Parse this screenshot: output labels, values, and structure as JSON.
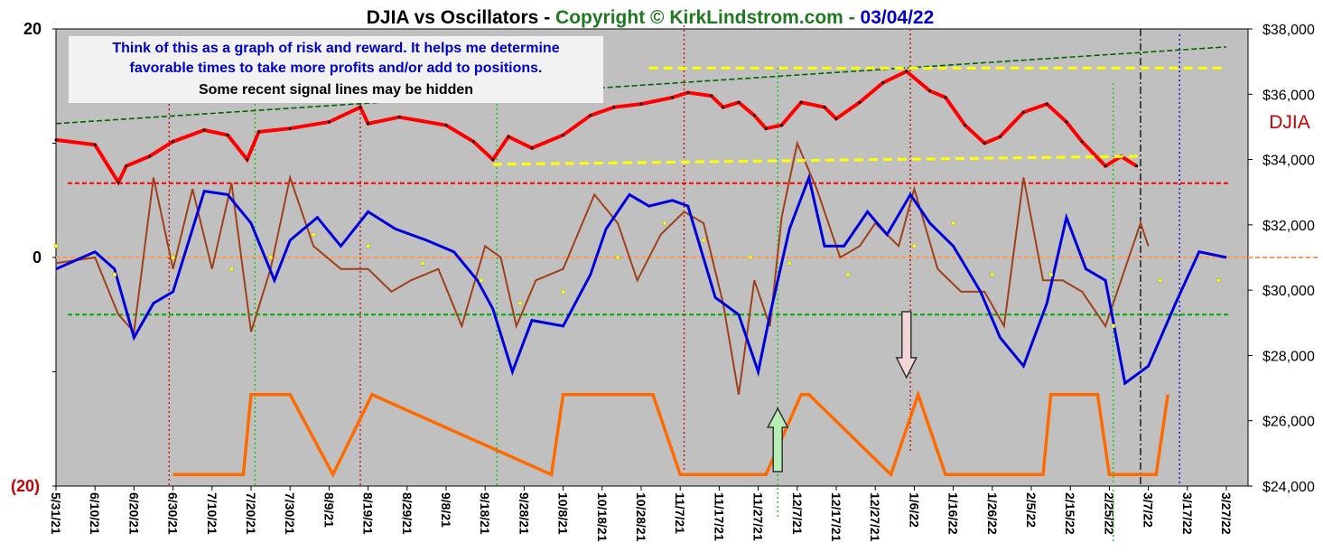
{
  "title": {
    "part1": "DJIA vs Oscillators - ",
    "part2": "Copyright © KirkLindstrom.com - ",
    "part3": "03/04/22",
    "color1": "#000000",
    "color2": "#1e7a1e",
    "color3": "#0000cc"
  },
  "note": {
    "line1": "Think of this as a graph of risk and reward.  It helps me determine",
    "line2": "favorable times to take more profits and/or add to positions.",
    "line3": "Some recent signal lines may be hidden"
  },
  "series_label": "DJIA",
  "colors": {
    "plot_bg": "#c0c0c0",
    "djia": "#ff0000",
    "blue_osc": "#0000dd",
    "brown_osc": "#a0401a",
    "yellow_osc": "#ffff00",
    "signal": "#ff6a00",
    "upper_band": "#ff0000",
    "lower_band": "#00aa00",
    "zero_line": "#ff9955",
    "trend_green": "#006400",
    "trend_yellow": "#ffff00",
    "label_red": "#cc0000"
  },
  "chart_data": {
    "type": "line",
    "title": "DJIA vs Oscillators - Copyright © KirkLindstrom.com - 03/04/22",
    "x_tick_labels": [
      "5/31/21",
      "6/10/21",
      "6/20/21",
      "6/30/21",
      "7/10/21",
      "7/20/21",
      "7/30/21",
      "8/9/21",
      "8/19/21",
      "8/29/21",
      "9/8/21",
      "9/18/21",
      "9/28/21",
      "10/8/21",
      "10/18/21",
      "10/28/21",
      "11/7/21",
      "11/17/21",
      "11/27/21",
      "12/7/21",
      "12/17/21",
      "12/27/21",
      "1/6/22",
      "1/16/22",
      "1/26/22",
      "2/5/22",
      "2/15/22",
      "2/25/22",
      "3/7/22",
      "3/17/22",
      "3/27/22"
    ],
    "left_axis": {
      "ylim": [
        -20,
        20
      ],
      "tick_labels": [
        "20",
        "0",
        "(20)"
      ],
      "tick_values": [
        20,
        0,
        -20
      ]
    },
    "right_axis": {
      "ylim": [
        24000,
        38000
      ],
      "tick_labels": [
        "$38,000",
        "$36,000",
        "$34,000",
        "$32,000",
        "$30,000",
        "$28,000",
        "$26,000",
        "$24,000"
      ],
      "tick_values": [
        38000,
        36000,
        34000,
        32000,
        30000,
        28000,
        26000,
        24000
      ]
    },
    "series": [
      {
        "name": "DJIA",
        "axis": "right",
        "x": [
          "5/31/21",
          "6/10/21",
          "6/16/21",
          "6/18/21",
          "6/24/21",
          "6/30/21",
          "7/8/21",
          "7/14/21",
          "7/19/21",
          "7/22/21",
          "7/30/21",
          "8/9/21",
          "8/17/21",
          "8/19/21",
          "8/27/21",
          "9/8/21",
          "9/15/21",
          "9/20/21",
          "9/24/21",
          "9/30/21",
          "10/8/21",
          "10/15/21",
          "10/21/21",
          "10/28/21",
          "11/5/21",
          "11/9/21",
          "11/15/21",
          "11/18/21",
          "11/22/21",
          "11/26/21",
          "11/29/21",
          "12/3/21",
          "12/8/21",
          "12/14/21",
          "12/17/21",
          "12/23/21",
          "12/29/21",
          "1/4/22",
          "1/10/22",
          "1/14/22",
          "1/19/22",
          "1/24/22",
          "1/28/22",
          "2/3/22",
          "2/9/22",
          "2/14/22",
          "2/18/22",
          "2/24/22",
          "2/28/22",
          "3/4/22"
        ],
        "values": [
          34600,
          34450,
          33300,
          33800,
          34100,
          34550,
          34900,
          34750,
          34000,
          34850,
          34950,
          35150,
          35600,
          35100,
          35300,
          35050,
          34550,
          34000,
          34700,
          34350,
          34750,
          35350,
          35600,
          35700,
          35900,
          36050,
          35950,
          35600,
          35750,
          35350,
          34950,
          35050,
          35750,
          35600,
          35250,
          35750,
          36350,
          36700,
          36100,
          35900,
          35050,
          34500,
          34700,
          35450,
          35700,
          35150,
          34550,
          33800,
          34100,
          33800
        ]
      },
      {
        "name": "",
        "axis": "left",
        "x": [
          "5/31/21",
          "6/10/21",
          "6/15/21",
          "6/20/21",
          "6/25/21",
          "6/30/21",
          "7/8/21",
          "7/14/21",
          "7/20/21",
          "7/26/21",
          "7/30/21",
          "8/6/21",
          "8/12/21",
          "8/19/21",
          "8/26/21",
          "9/3/21",
          "9/10/21",
          "9/16/21",
          "9/20/21",
          "9/25/21",
          "9/30/21",
          "10/8/21",
          "10/15/21",
          "10/19/21",
          "10/25/21",
          "10/30/21",
          "11/5/21",
          "11/9/21",
          "11/16/21",
          "11/22/21",
          "11/27/21",
          "11/30/21",
          "12/5/21",
          "12/10/21",
          "12/14/21",
          "12/19/21",
          "12/25/21",
          "12/30/21",
          "1/5/22",
          "1/10/22",
          "1/16/22",
          "1/23/22",
          "1/28/22",
          "2/3/22",
          "2/9/22",
          "2/14/22",
          "2/19/22",
          "2/24/22",
          "3/1/22",
          "3/7/22",
          "3/14/22",
          "3/20/22",
          "3/27/22"
        ],
        "values": [
          -1,
          0.5,
          -1,
          -7,
          -4,
          -3,
          5.8,
          5.5,
          3,
          -2,
          1.5,
          3.5,
          1,
          4,
          2.5,
          1.5,
          0.5,
          -2,
          -4.5,
          -10,
          -5.5,
          -6,
          -1.5,
          2.5,
          5.5,
          4.5,
          5,
          4.5,
          -3.5,
          -5,
          -10,
          -5,
          2.5,
          7,
          1,
          1,
          4,
          2,
          5.5,
          3,
          1,
          -3,
          -7,
          -9.5,
          -4,
          3.5,
          -1,
          -2,
          -11,
          -9.5,
          -4,
          0.5,
          0
        ]
      },
      {
        "name": "",
        "axis": "left",
        "x": [
          "5/31/21",
          "6/10/21",
          "6/16/21",
          "6/20/21",
          "6/25/21",
          "6/30/21",
          "7/5/21",
          "7/10/21",
          "7/15/21",
          "7/20/21",
          "7/25/21",
          "7/30/21",
          "8/5/21",
          "8/12/21",
          "8/19/21",
          "8/25/21",
          "8/30/21",
          "9/6/21",
          "9/12/21",
          "9/18/21",
          "9/22/21",
          "9/26/21",
          "10/1/21",
          "10/8/21",
          "10/16/21",
          "10/22/21",
          "10/27/21",
          "11/2/21",
          "11/8/21",
          "11/13/21",
          "11/18/21",
          "11/22/21",
          "11/26/21",
          "11/30/21",
          "12/3/21",
          "12/7/21",
          "12/12/21",
          "12/18/21",
          "12/23/21",
          "12/27/21",
          "1/2/22",
          "1/6/22",
          "1/12/22",
          "1/18/22",
          "1/24/22",
          "1/29/22",
          "2/3/22",
          "2/8/22",
          "2/13/22",
          "2/18/22",
          "2/24/22",
          "2/28/22",
          "3/5/22",
          "3/7/22"
        ],
        "values": [
          -0.5,
          0,
          -5,
          -6.5,
          7,
          -1,
          6,
          -1,
          6.5,
          -6.5,
          -1,
          7,
          1,
          -1,
          -1,
          -3,
          -2,
          -1,
          -6,
          1,
          0,
          -6,
          -2,
          -1,
          5.5,
          3,
          -2,
          2,
          4,
          3,
          -4,
          -12,
          -2,
          -6,
          3.5,
          10,
          6,
          0,
          1,
          3,
          1,
          6,
          -1,
          -3,
          -3,
          -6,
          7,
          -2,
          -2,
          -3,
          -6,
          -2,
          3,
          1
        ]
      },
      {
        "name": "",
        "axis": "left",
        "x": [
          "5/31/21",
          "6/15/21",
          "6/30/21",
          "7/15/21",
          "7/25/21",
          "8/5/21",
          "8/19/21",
          "9/2/21",
          "9/17/21",
          "9/27/21",
          "10/8/21",
          "10/22/21",
          "11/3/21",
          "11/13/21",
          "11/25/21",
          "12/5/21",
          "12/20/21",
          "1/6/22",
          "1/16/22",
          "1/26/22",
          "2/10/22",
          "2/26/22",
          "3/10/22",
          "3/25/22"
        ],
        "values": [
          1,
          -1.5,
          0,
          -1,
          0,
          2,
          1,
          -0.5,
          -2,
          -4,
          -3,
          0,
          3,
          1.5,
          0,
          -0.5,
          -1.5,
          1,
          3,
          -1.5,
          -1.5,
          -6,
          -2,
          -2
        ]
      },
      {
        "name": "",
        "axis": "left",
        "x": [
          "6/30/21",
          "7/18/21",
          "7/20/21",
          "7/30/21",
          "8/10/21",
          "8/20/21",
          "10/5/21",
          "10/8/21",
          "10/31/21",
          "11/7/21",
          "11/29/21",
          "12/8/21",
          "12/10/21",
          "12/31/21",
          "1/7/22",
          "1/14/22",
          "2/8/22",
          "2/10/22",
          "2/22/22",
          "2/25/22",
          "3/9/22",
          "3/12/22"
        ],
        "values": [
          -19,
          -19,
          -12,
          -12,
          -19,
          -12,
          -19,
          -12,
          -12,
          -19,
          -19,
          -12,
          -12,
          -19,
          -12,
          -19,
          -19,
          -12,
          -12,
          -19,
          -19,
          -12
        ]
      }
    ],
    "reference_lines": [
      {
        "axis": "left",
        "value": 6.5,
        "color": "red",
        "style": "dashed"
      },
      {
        "axis": "left",
        "value": -5,
        "color": "green",
        "style": "dashed"
      },
      {
        "axis": "left",
        "value": 0,
        "color": "orange",
        "style": "dashed"
      }
    ],
    "trendlines": [
      {
        "color": "darkgreen",
        "style": "dashed",
        "from": [
          "5/31/21",
          35100
        ],
        "to": [
          "3/27/22",
          37450
        ]
      },
      {
        "color": "yellow",
        "style": "dashed",
        "from": [
          "10/30/21",
          36800
        ],
        "to": [
          "3/27/22",
          36800
        ]
      },
      {
        "color": "yellow",
        "style": "dashed",
        "from": [
          "9/20/21",
          33850
        ],
        "to": [
          "3/5/22",
          34100
        ]
      }
    ],
    "grid": false
  }
}
